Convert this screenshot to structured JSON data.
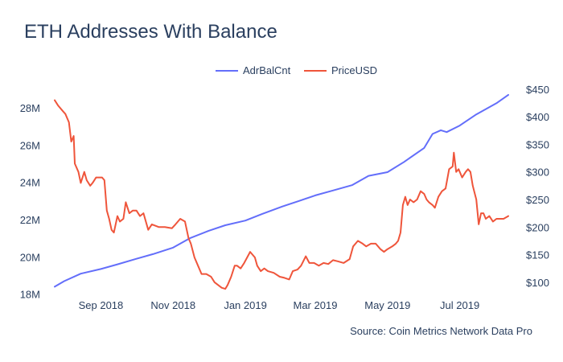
{
  "title": "ETH Addresses With Balance",
  "source": "Source: Coin Metrics Network Data Pro",
  "chart_data": {
    "type": "line",
    "title": "ETH Addresses With Balance",
    "x_tick_labels": [
      "Sep 2018",
      "Nov 2018",
      "Jan 2019",
      "Mar 2019",
      "May 2019",
      "Jul 2019"
    ],
    "x_ticks": [
      "2018-09-01",
      "2018-11-01",
      "2019-01-01",
      "2019-03-01",
      "2019-05-01",
      "2019-07-01"
    ],
    "xlim": [
      "2018-07-24",
      "2019-08-11"
    ],
    "y_left": {
      "ticks": [
        18,
        20,
        22,
        24,
        26,
        28
      ],
      "tick_labels": [
        "18M",
        "20M",
        "22M",
        "24M",
        "26M",
        "28M"
      ],
      "lim": [
        17.9,
        29.3
      ],
      "unit": "M"
    },
    "y_right": {
      "ticks": [
        100,
        150,
        200,
        250,
        300,
        350,
        400,
        450
      ],
      "tick_labels": [
        "$100",
        "$150",
        "$200",
        "$250",
        "$300",
        "$350",
        "$400",
        "$450"
      ],
      "lim": [
        75,
        460
      ]
    },
    "legend_position": "top-center",
    "grid": false,
    "colors": {
      "AdrBalCnt": "#636efa",
      "PriceUSD": "#ef553b"
    },
    "series": [
      {
        "name": "AdrBalCnt",
        "axis": "left",
        "points": [
          [
            "2018-07-24",
            18.4
          ],
          [
            "2018-08-01",
            18.7
          ],
          [
            "2018-08-15",
            19.1
          ],
          [
            "2018-09-01",
            19.35
          ],
          [
            "2018-09-15",
            19.6
          ],
          [
            "2018-10-01",
            19.9
          ],
          [
            "2018-10-15",
            20.15
          ],
          [
            "2018-11-01",
            20.5
          ],
          [
            "2018-11-15",
            21.0
          ],
          [
            "2018-12-01",
            21.4
          ],
          [
            "2018-12-15",
            21.7
          ],
          [
            "2019-01-01",
            21.95
          ],
          [
            "2019-01-15",
            22.3
          ],
          [
            "2019-02-01",
            22.7
          ],
          [
            "2019-02-15",
            23.0
          ],
          [
            "2019-03-01",
            23.3
          ],
          [
            "2019-03-15",
            23.55
          ],
          [
            "2019-04-01",
            23.85
          ],
          [
            "2019-04-15",
            24.35
          ],
          [
            "2019-05-01",
            24.55
          ],
          [
            "2019-05-15",
            25.1
          ],
          [
            "2019-06-01",
            25.85
          ],
          [
            "2019-06-08",
            26.6
          ],
          [
            "2019-06-15",
            26.8
          ],
          [
            "2019-06-20",
            26.7
          ],
          [
            "2019-07-01",
            27.05
          ],
          [
            "2019-07-15",
            27.65
          ],
          [
            "2019-08-01",
            28.25
          ],
          [
            "2019-08-11",
            28.7
          ]
        ]
      },
      {
        "name": "PriceUSD",
        "axis": "right",
        "points": [
          [
            "2018-07-24",
            430
          ],
          [
            "2018-07-27",
            420
          ],
          [
            "2018-07-31",
            410
          ],
          [
            "2018-08-02",
            405
          ],
          [
            "2018-08-05",
            390
          ],
          [
            "2018-08-07",
            355
          ],
          [
            "2018-08-09",
            365
          ],
          [
            "2018-08-10",
            315
          ],
          [
            "2018-08-13",
            300
          ],
          [
            "2018-08-15",
            280
          ],
          [
            "2018-08-18",
            300
          ],
          [
            "2018-08-20",
            285
          ],
          [
            "2018-08-23",
            275
          ],
          [
            "2018-08-25",
            280
          ],
          [
            "2018-08-28",
            290
          ],
          [
            "2018-08-31",
            290
          ],
          [
            "2018-09-02",
            290
          ],
          [
            "2018-09-04",
            285
          ],
          [
            "2018-09-06",
            230
          ],
          [
            "2018-09-08",
            215
          ],
          [
            "2018-09-10",
            195
          ],
          [
            "2018-09-12",
            190
          ],
          [
            "2018-09-15",
            220
          ],
          [
            "2018-09-17",
            210
          ],
          [
            "2018-09-20",
            215
          ],
          [
            "2018-09-22",
            245
          ],
          [
            "2018-09-25",
            225
          ],
          [
            "2018-09-28",
            230
          ],
          [
            "2018-10-01",
            230
          ],
          [
            "2018-10-04",
            220
          ],
          [
            "2018-10-07",
            225
          ],
          [
            "2018-10-11",
            195
          ],
          [
            "2018-10-14",
            205
          ],
          [
            "2018-10-20",
            200
          ],
          [
            "2018-10-25",
            200
          ],
          [
            "2018-10-31",
            198
          ],
          [
            "2018-11-03",
            205
          ],
          [
            "2018-11-07",
            215
          ],
          [
            "2018-11-11",
            210
          ],
          [
            "2018-11-14",
            180
          ],
          [
            "2018-11-16",
            170
          ],
          [
            "2018-11-19",
            145
          ],
          [
            "2018-11-22",
            130
          ],
          [
            "2018-11-25",
            115
          ],
          [
            "2018-11-29",
            115
          ],
          [
            "2018-12-03",
            110
          ],
          [
            "2018-12-06",
            100
          ],
          [
            "2018-12-09",
            95
          ],
          [
            "2018-12-12",
            90
          ],
          [
            "2018-12-15",
            88
          ],
          [
            "2018-12-17",
            95
          ],
          [
            "2018-12-20",
            110
          ],
          [
            "2018-12-23",
            130
          ],
          [
            "2018-12-25",
            130
          ],
          [
            "2018-12-28",
            125
          ],
          [
            "2018-12-31",
            135
          ],
          [
            "2019-01-05",
            155
          ],
          [
            "2019-01-09",
            145
          ],
          [
            "2019-01-11",
            130
          ],
          [
            "2019-01-14",
            120
          ],
          [
            "2019-01-17",
            125
          ],
          [
            "2019-01-20",
            120
          ],
          [
            "2019-01-25",
            117
          ],
          [
            "2019-01-30",
            110
          ],
          [
            "2019-02-03",
            108
          ],
          [
            "2019-02-07",
            105
          ],
          [
            "2019-02-10",
            120
          ],
          [
            "2019-02-14",
            123
          ],
          [
            "2019-02-17",
            130
          ],
          [
            "2019-02-21",
            147
          ],
          [
            "2019-02-24",
            135
          ],
          [
            "2019-02-28",
            135
          ],
          [
            "2019-03-04",
            130
          ],
          [
            "2019-03-08",
            135
          ],
          [
            "2019-03-12",
            133
          ],
          [
            "2019-03-16",
            140
          ],
          [
            "2019-03-20",
            138
          ],
          [
            "2019-03-25",
            135
          ],
          [
            "2019-03-30",
            142
          ],
          [
            "2019-04-02",
            165
          ],
          [
            "2019-04-06",
            175
          ],
          [
            "2019-04-10",
            170
          ],
          [
            "2019-04-13",
            165
          ],
          [
            "2019-04-17",
            170
          ],
          [
            "2019-04-21",
            170
          ],
          [
            "2019-04-25",
            160
          ],
          [
            "2019-04-28",
            155
          ],
          [
            "2019-05-01",
            160
          ],
          [
            "2019-05-05",
            165
          ],
          [
            "2019-05-08",
            170
          ],
          [
            "2019-05-10",
            175
          ],
          [
            "2019-05-12",
            190
          ],
          [
            "2019-05-14",
            240
          ],
          [
            "2019-05-16",
            255
          ],
          [
            "2019-05-18",
            240
          ],
          [
            "2019-05-20",
            250
          ],
          [
            "2019-05-23",
            245
          ],
          [
            "2019-05-26",
            250
          ],
          [
            "2019-05-29",
            265
          ],
          [
            "2019-06-01",
            260
          ],
          [
            "2019-06-03",
            250
          ],
          [
            "2019-06-05",
            245
          ],
          [
            "2019-06-08",
            240
          ],
          [
            "2019-06-10",
            235
          ],
          [
            "2019-06-13",
            255
          ],
          [
            "2019-06-16",
            265
          ],
          [
            "2019-06-19",
            270
          ],
          [
            "2019-06-22",
            305
          ],
          [
            "2019-06-25",
            310
          ],
          [
            "2019-06-26",
            335
          ],
          [
            "2019-06-28",
            300
          ],
          [
            "2019-06-30",
            305
          ],
          [
            "2019-07-03",
            290
          ],
          [
            "2019-07-06",
            300
          ],
          [
            "2019-07-08",
            305
          ],
          [
            "2019-07-10",
            300
          ],
          [
            "2019-07-12",
            275
          ],
          [
            "2019-07-15",
            250
          ],
          [
            "2019-07-17",
            205
          ],
          [
            "2019-07-19",
            225
          ],
          [
            "2019-07-21",
            225
          ],
          [
            "2019-07-23",
            215
          ],
          [
            "2019-07-26",
            220
          ],
          [
            "2019-07-29",
            210
          ],
          [
            "2019-08-01",
            215
          ],
          [
            "2019-08-04",
            215
          ],
          [
            "2019-08-07",
            215
          ],
          [
            "2019-08-11",
            220
          ]
        ]
      }
    ]
  }
}
